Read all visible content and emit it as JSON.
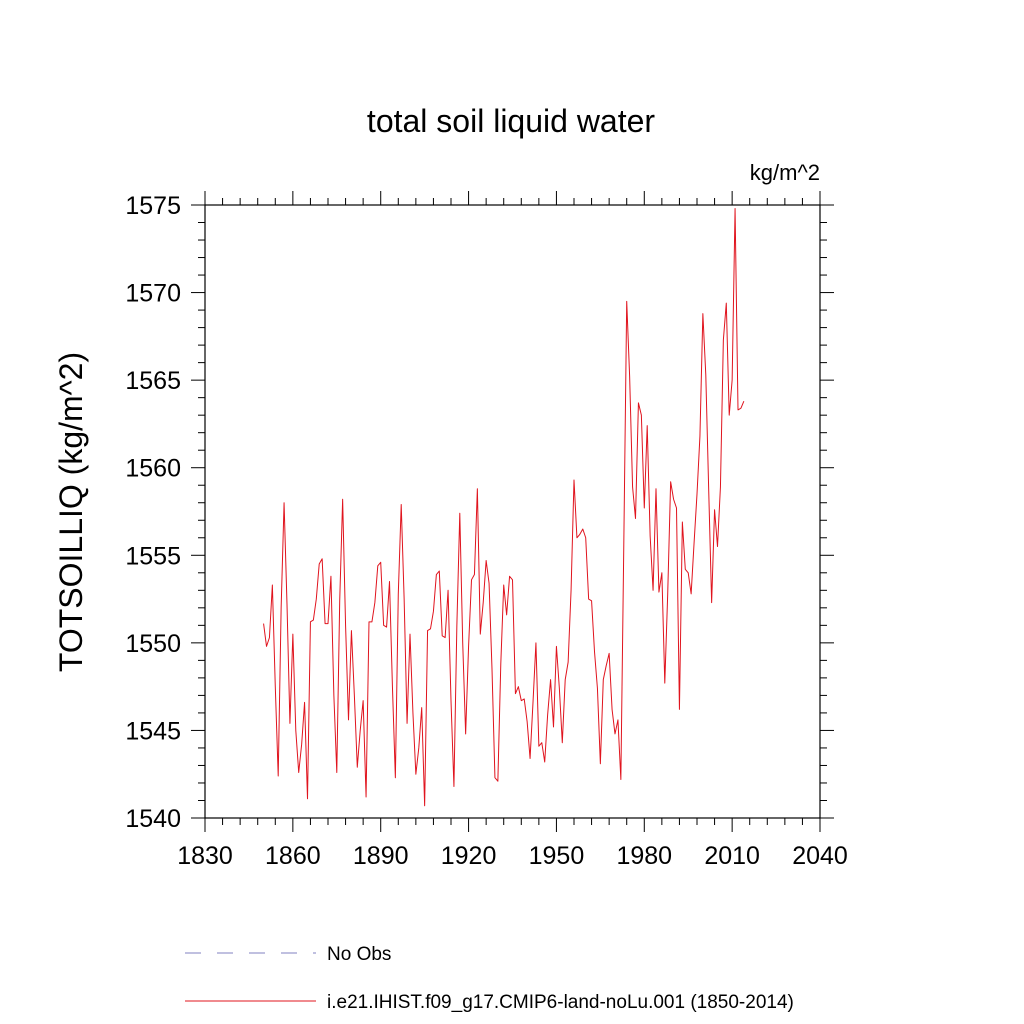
{
  "chart_data": {
    "type": "line",
    "title": "total soil liquid water",
    "units_label": "kg/m^2",
    "ylabel": "TOTSOILLIQ  (kg/m^2)",
    "xlabel": "",
    "xlim": [
      1830,
      2040
    ],
    "ylim": [
      1540,
      1575
    ],
    "xticks": [
      1830,
      1860,
      1890,
      1920,
      1950,
      1980,
      2010,
      2040
    ],
    "yticks": [
      1540,
      1545,
      1550,
      1555,
      1560,
      1565,
      1570,
      1575
    ],
    "grid": false,
    "legend_position": "bottom",
    "legend": [
      {
        "label": "No Obs",
        "color": "#8080c0",
        "dash": true
      },
      {
        "label": "i.e21.IHIST.f09_g17.CMIP6-land-noLu.001 (1850-2014)",
        "color": "#e0141e",
        "dash": false
      }
    ],
    "series": [
      {
        "name": "i.e21.IHIST.f09_g17.CMIP6-land-noLu.001 (1850-2014)",
        "color": "#e0141e",
        "x_start": 1850,
        "x_step": 1,
        "values": [
          1551.1,
          1549.8,
          1550.3,
          1553.3,
          1547.5,
          1542.4,
          1552.0,
          1558.0,
          1552.2,
          1545.4,
          1550.5,
          1545.0,
          1542.6,
          1544.2,
          1546.6,
          1541.1,
          1551.2,
          1551.3,
          1552.5,
          1554.5,
          1554.8,
          1551.1,
          1551.1,
          1553.8,
          1547.0,
          1542.6,
          1552.4,
          1558.2,
          1551.0,
          1545.6,
          1550.7,
          1547.0,
          1542.9,
          1545.0,
          1546.7,
          1541.2,
          1551.2,
          1551.2,
          1552.3,
          1554.4,
          1554.6,
          1551.0,
          1550.9,
          1553.5,
          1547.5,
          1542.3,
          1552.8,
          1557.9,
          1552.5,
          1545.4,
          1550.5,
          1546.0,
          1542.5,
          1544.0,
          1546.3,
          1540.7,
          1550.7,
          1550.8,
          1551.8,
          1553.9,
          1554.1,
          1550.4,
          1550.3,
          1553.0,
          1546.7,
          1541.8,
          1551.0,
          1557.4,
          1550.0,
          1544.8,
          1549.8,
          1553.6,
          1553.9,
          1558.8,
          1550.5,
          1552.3,
          1554.7,
          1553.4,
          1548.5,
          1542.3,
          1542.1,
          1548.8,
          1553.3,
          1551.6,
          1553.8,
          1553.6,
          1547.1,
          1547.5,
          1546.7,
          1546.8,
          1545.5,
          1543.4,
          1546.6,
          1550.0,
          1544.1,
          1544.3,
          1543.2,
          1545.9,
          1547.9,
          1545.2,
          1549.8,
          1547.4,
          1544.3,
          1547.9,
          1548.9,
          1553.0,
          1559.3,
          1556.0,
          1556.2,
          1556.5,
          1556.0,
          1552.5,
          1552.4,
          1549.5,
          1547.4,
          1543.1,
          1547.9,
          1548.7,
          1549.4,
          1546.2,
          1544.8,
          1545.6,
          1542.2,
          1555.6,
          1569.5,
          1565.2,
          1558.9,
          1557.1,
          1563.7,
          1563.0,
          1557.7,
          1562.4,
          1556.1,
          1553.0,
          1558.8,
          1552.9,
          1554.0,
          1547.7,
          1552.8,
          1559.2,
          1558.2,
          1557.7,
          1546.2,
          1556.9,
          1554.2,
          1554.0,
          1552.8,
          1555.7,
          1558.5,
          1561.8,
          1568.8,
          1565.3,
          1558.7,
          1552.3,
          1557.6,
          1555.5,
          1558.9,
          1567.3,
          1569.4,
          1563.0,
          1565.0,
          1574.8,
          1563.3,
          1563.4,
          1563.8
        ]
      }
    ]
  }
}
